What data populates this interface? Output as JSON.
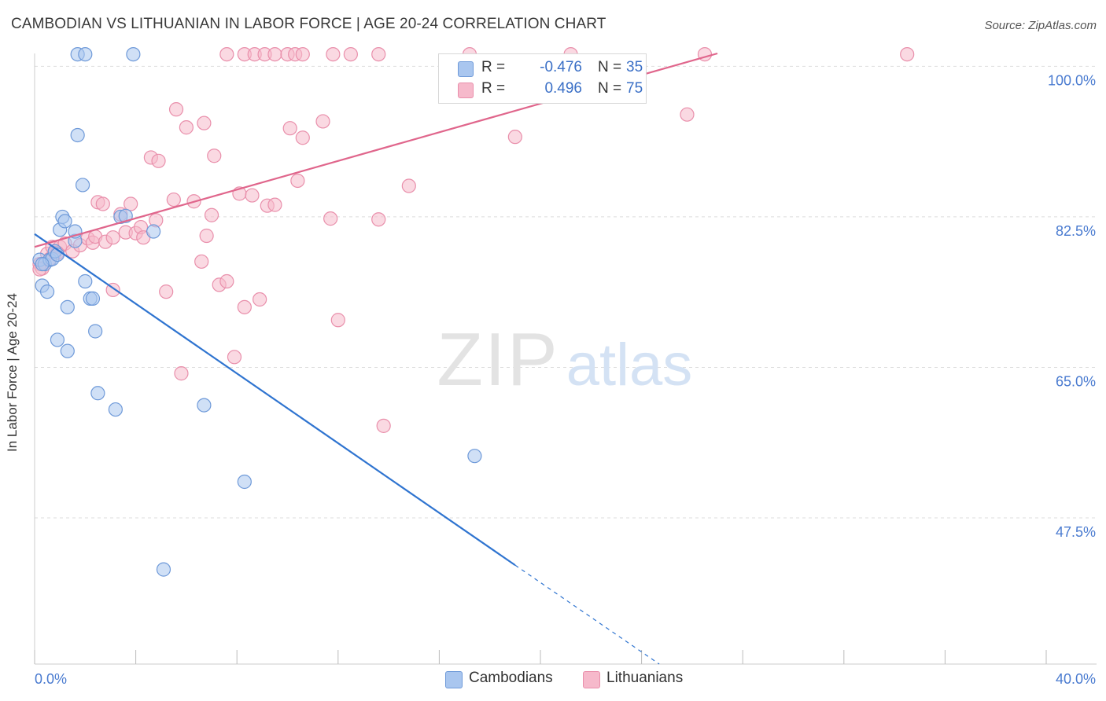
{
  "title": "CAMBODIAN VS LITHUANIAN IN LABOR FORCE | AGE 20-24 CORRELATION CHART",
  "source": "Source: ZipAtlas.com",
  "watermark": {
    "zip": "ZIP",
    "atlas": "atlas"
  },
  "legend": {
    "rows": [
      {
        "r_label": "R =",
        "r_value": "-0.476",
        "n_label": "N =",
        "n_value": "35"
      },
      {
        "r_label": "R =",
        "r_value": "0.496",
        "n_label": "N =",
        "n_value": "75"
      }
    ]
  },
  "colors": {
    "cambodian_fill": "#a9c6ef",
    "cambodian_stroke": "#6f9ad9",
    "cambodian_line": "#2f74d0",
    "lithuanian_fill": "#f6b9cb",
    "lithuanian_stroke": "#e98fab",
    "lithuanian_line": "#e0668c",
    "grid": "#dddddd",
    "tick_label": "#4a7bd0"
  },
  "chart_data": {
    "type": "scatter",
    "title": "CAMBODIAN VS LITHUANIAN IN LABOR FORCE | AGE 20-24 CORRELATION CHART",
    "xlabel": "",
    "ylabel": "In Labor Force | Age 20-24",
    "xlim": [
      0,
      40
    ],
    "ylim": [
      30.5,
      101.5
    ],
    "x_tick_labels": [
      "0.0%",
      "40.0%"
    ],
    "y_ticks": [
      47.5,
      65.0,
      82.5,
      100.0
    ],
    "y_tick_labels": [
      "47.5%",
      "65.0%",
      "82.5%",
      "100.0%"
    ],
    "grid": true,
    "legend_position": "top-center",
    "series": [
      {
        "name": "Cambodians",
        "r": -0.476,
        "n": 35,
        "trend": {
          "x": [
            0.0,
            19.0
          ],
          "y": [
            80.5,
            42.0
          ],
          "dashed_to": [
            24.7,
            30.5
          ]
        },
        "points": [
          [
            0.2,
            77.5
          ],
          [
            0.4,
            77.0
          ],
          [
            0.3,
            74.5
          ],
          [
            0.5,
            73.8
          ],
          [
            0.6,
            77.5
          ],
          [
            0.7,
            77.6
          ],
          [
            0.8,
            78.5
          ],
          [
            0.9,
            78.1
          ],
          [
            1.6,
            79.7
          ],
          [
            1.0,
            81.0
          ],
          [
            1.1,
            82.5
          ],
          [
            1.2,
            82.0
          ],
          [
            1.6,
            80.8
          ],
          [
            1.3,
            72.0
          ],
          [
            0.9,
            68.2
          ],
          [
            1.3,
            66.9
          ],
          [
            2.0,
            75.0
          ],
          [
            2.2,
            73.0
          ],
          [
            2.3,
            73.0
          ],
          [
            2.4,
            69.2
          ],
          [
            2.5,
            62.0
          ],
          [
            3.2,
            60.1
          ],
          [
            3.4,
            82.5
          ],
          [
            3.6,
            82.6
          ],
          [
            4.7,
            80.8
          ],
          [
            5.1,
            41.5
          ],
          [
            6.7,
            60.6
          ],
          [
            8.3,
            51.7
          ],
          [
            17.4,
            54.7
          ],
          [
            1.7,
            92.0
          ],
          [
            1.9,
            86.2
          ],
          [
            1.7,
            101.4
          ],
          [
            2.0,
            101.4
          ],
          [
            3.9,
            101.4
          ],
          [
            0.3,
            77.0
          ]
        ]
      },
      {
        "name": "Lithuanians",
        "r": 0.496,
        "n": 75,
        "trend": {
          "x": [
            0.0,
            27.0
          ],
          "y": [
            79.0,
            101.5
          ]
        },
        "points": [
          [
            0.2,
            77.0
          ],
          [
            0.3,
            76.5
          ],
          [
            0.5,
            78.2
          ],
          [
            0.6,
            77.6
          ],
          [
            0.7,
            79.0
          ],
          [
            0.8,
            78.3
          ],
          [
            1.0,
            79.0
          ],
          [
            1.2,
            79.4
          ],
          [
            1.5,
            78.5
          ],
          [
            1.8,
            79.2
          ],
          [
            2.1,
            80.0
          ],
          [
            2.3,
            79.5
          ],
          [
            2.4,
            80.2
          ],
          [
            2.5,
            84.2
          ],
          [
            2.7,
            84.0
          ],
          [
            2.8,
            79.6
          ],
          [
            3.1,
            80.1
          ],
          [
            3.4,
            82.8
          ],
          [
            3.6,
            80.7
          ],
          [
            3.8,
            84.0
          ],
          [
            4.0,
            80.6
          ],
          [
            4.2,
            81.3
          ],
          [
            4.3,
            80.1
          ],
          [
            4.6,
            89.4
          ],
          [
            4.8,
            82.1
          ],
          [
            4.9,
            89.0
          ],
          [
            5.2,
            73.8
          ],
          [
            5.5,
            84.5
          ],
          [
            5.6,
            95.0
          ],
          [
            5.8,
            64.3
          ],
          [
            6.0,
            92.9
          ],
          [
            6.3,
            84.3
          ],
          [
            6.6,
            77.3
          ],
          [
            6.7,
            93.4
          ],
          [
            6.8,
            80.3
          ],
          [
            7.0,
            82.7
          ],
          [
            7.1,
            89.6
          ],
          [
            7.3,
            74.6
          ],
          [
            7.6,
            75.0
          ],
          [
            7.9,
            66.2
          ],
          [
            8.1,
            85.2
          ],
          [
            8.3,
            72.0
          ],
          [
            8.6,
            85.0
          ],
          [
            8.9,
            72.9
          ],
          [
            9.2,
            83.8
          ],
          [
            9.5,
            83.9
          ],
          [
            10.1,
            92.8
          ],
          [
            10.4,
            86.7
          ],
          [
            10.6,
            91.7
          ],
          [
            11.4,
            93.6
          ],
          [
            11.7,
            82.3
          ],
          [
            12.0,
            70.5
          ],
          [
            13.6,
            82.2
          ],
          [
            13.8,
            58.2
          ],
          [
            14.8,
            86.1
          ],
          [
            3.1,
            74.0
          ],
          [
            19.0,
            91.8
          ],
          [
            25.8,
            94.4
          ],
          [
            26.5,
            101.4
          ],
          [
            34.5,
            101.4
          ],
          [
            7.6,
            101.4
          ],
          [
            8.3,
            101.4
          ],
          [
            8.7,
            101.4
          ],
          [
            9.1,
            101.4
          ],
          [
            9.5,
            101.4
          ],
          [
            10.0,
            101.4
          ],
          [
            10.3,
            101.4
          ],
          [
            10.6,
            101.4
          ],
          [
            11.8,
            101.4
          ],
          [
            12.5,
            101.4
          ],
          [
            13.6,
            101.4
          ],
          [
            17.2,
            101.4
          ],
          [
            21.2,
            101.4
          ],
          [
            0.2,
            76.4
          ],
          [
            0.9,
            78.3
          ]
        ]
      }
    ]
  }
}
